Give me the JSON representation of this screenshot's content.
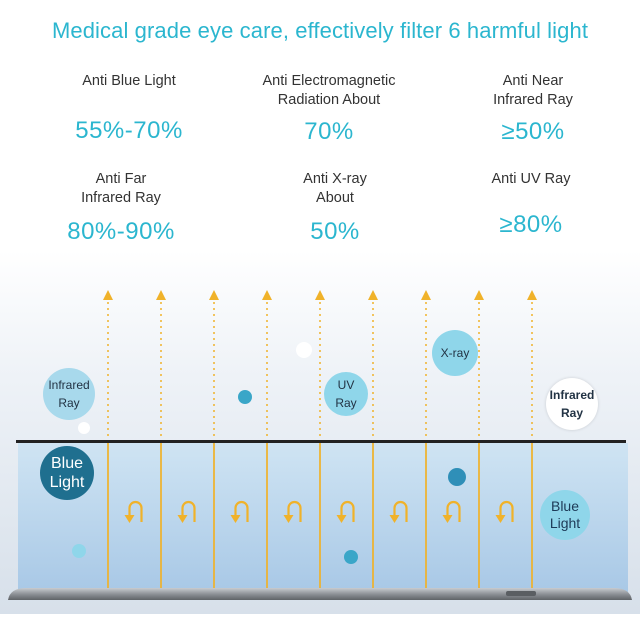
{
  "headline": "Medical grade eye care, effectively filter 6 harmful light",
  "stats": [
    {
      "label": "Anti Blue Light",
      "value": "55%-70%"
    },
    {
      "label": "Anti Electromagnetic Radiation About",
      "value": "70%"
    },
    {
      "label": "Anti Near Infrared Ray",
      "value": "≥50%"
    },
    {
      "label": "Anti Far Infrared Ray",
      "value": "80%-90%"
    },
    {
      "label": "Anti X-ray About",
      "value": "50%"
    },
    {
      "label": "Anti UV Ray",
      "value": "≥80%"
    }
  ],
  "bubbles": {
    "infrared_left": "Infrared Ray",
    "uv": "UV Ray",
    "xray": "X-ray",
    "infrared_right": "Infrared Ray",
    "blue_light_left": "Blue Light",
    "blue_light_right": "Blue Light"
  },
  "colors": {
    "accent": "#2bb6cf",
    "arrow": "#f0b22a",
    "deep_blue": "#1f6f8f",
    "light_blue": "#8fd6ea"
  }
}
